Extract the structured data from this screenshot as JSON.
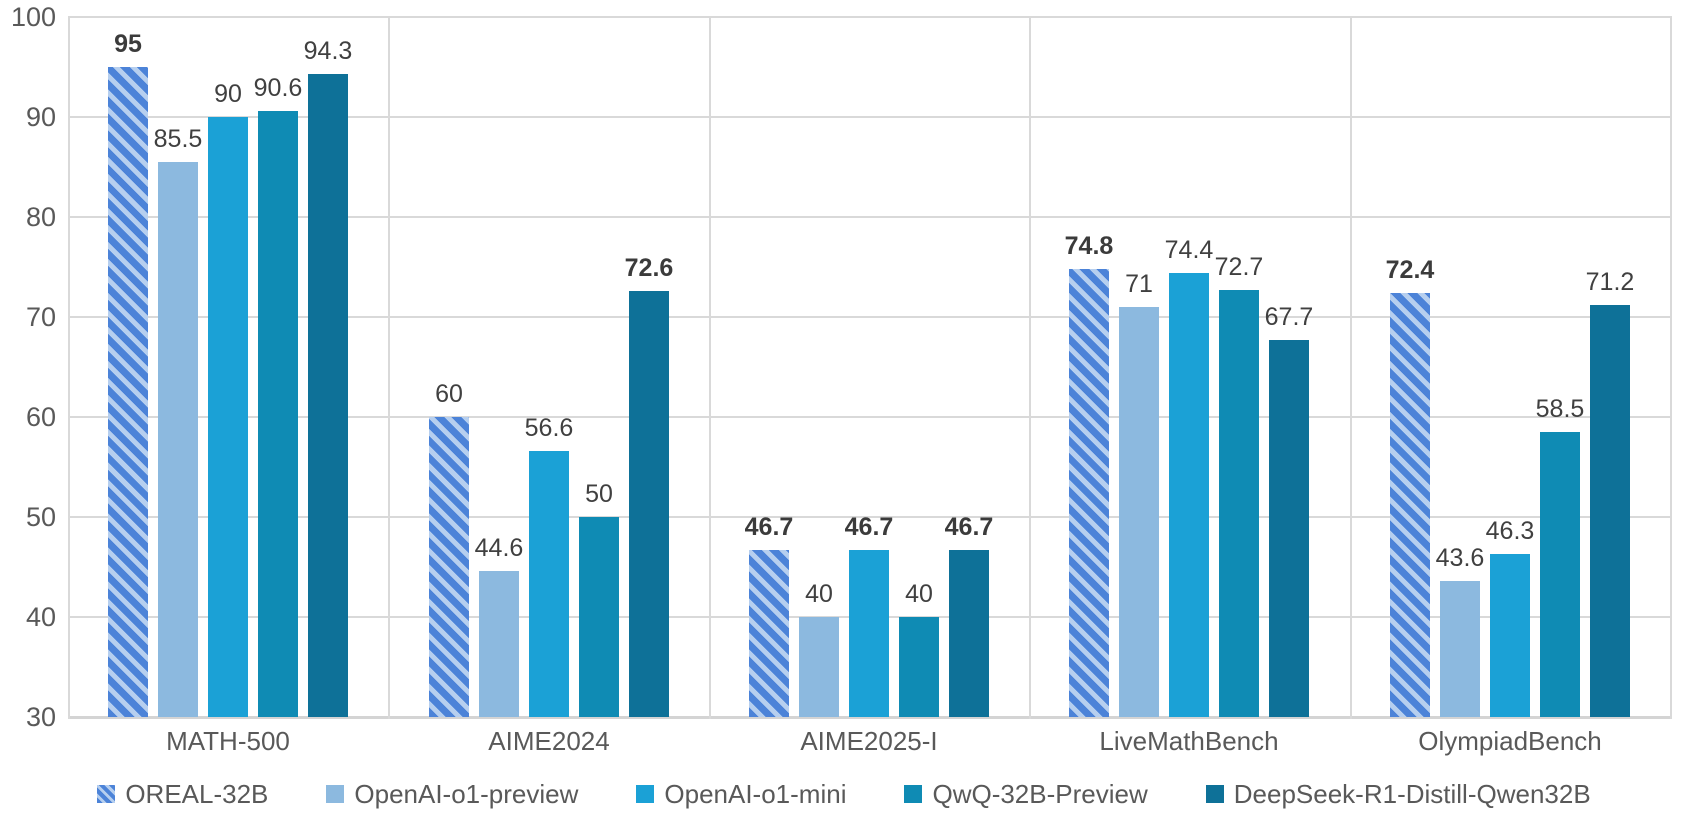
{
  "chart_data": {
    "type": "bar",
    "title": "",
    "categories": [
      "MATH-500",
      "AIME2024",
      "AIME2025-I",
      "LiveMathBench",
      "OlympiadBench"
    ],
    "series": [
      {
        "name": "OREAL-32B",
        "values": [
          95,
          60,
          46.7,
          74.8,
          72.4
        ],
        "labels": [
          "95",
          "60",
          "46.7",
          "74.8",
          "72.4"
        ],
        "bold": [
          true,
          false,
          true,
          true,
          true
        ],
        "fill": "hatch",
        "hatch_stripe_color": "#4c83d8",
        "hatch_bg_color": "#b6cfef"
      },
      {
        "name": "OpenAI-o1-preview",
        "values": [
          85.5,
          44.6,
          40,
          71,
          43.6
        ],
        "labels": [
          "85.5",
          "44.6",
          "40",
          "71",
          "43.6"
        ],
        "bold": [
          false,
          false,
          false,
          false,
          false
        ],
        "fill": "solid",
        "color": "#8cb9df"
      },
      {
        "name": "OpenAI-o1-mini",
        "values": [
          90,
          56.6,
          46.7,
          74.4,
          46.3
        ],
        "labels": [
          "90",
          "56.6",
          "46.7",
          "74.4",
          "46.3"
        ],
        "bold": [
          false,
          false,
          true,
          false,
          false
        ],
        "fill": "solid",
        "color": "#1ba1d6"
      },
      {
        "name": "QwQ-32B-Preview",
        "values": [
          90.6,
          50,
          40,
          72.7,
          58.5
        ],
        "labels": [
          "90.6",
          "50",
          "40",
          "72.7",
          "58.5"
        ],
        "bold": [
          false,
          false,
          false,
          false,
          false
        ],
        "fill": "solid",
        "color": "#0f8bb4"
      },
      {
        "name": "DeepSeek-R1-Distill-Qwen32B",
        "values": [
          94.3,
          72.6,
          46.7,
          67.7,
          71.2
        ],
        "labels": [
          "94.3",
          "72.6",
          "46.7",
          "67.7",
          "71.2"
        ],
        "bold": [
          false,
          true,
          true,
          false,
          false
        ],
        "fill": "solid",
        "color": "#0e7198"
      }
    ],
    "y_axis": {
      "min": 30,
      "max": 100,
      "step": 10,
      "tick_labels": [
        "30",
        "40",
        "50",
        "60",
        "70",
        "80",
        "90",
        "100"
      ]
    },
    "grid": true,
    "legend_position": "bottom",
    "colors": {
      "gridline": "#d9d9d9",
      "axis_text": "#595959",
      "data_label_text": "#404040",
      "background": "#ffffff"
    }
  }
}
